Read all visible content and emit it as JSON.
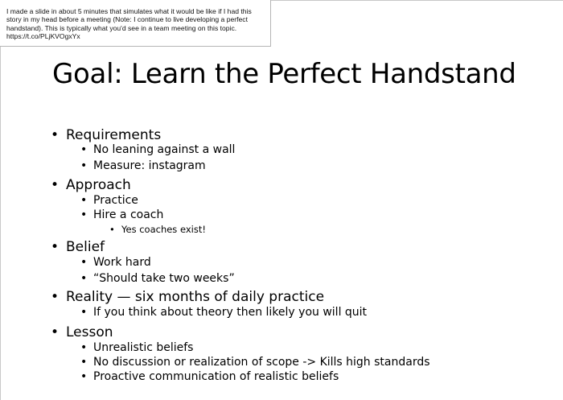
{
  "tweet": {
    "lines": [
      "I made a slide in about 5 minutes that simulates what it would be like if I had this",
      "story in my head before a meeting (Note: I continue to live developing a perfect",
      "handstand). This is typically what you'd see in a team meeting on this topic.",
      "https://t.co/PLjKVOgxYx"
    ]
  },
  "slide": {
    "title": "Goal: Learn the Perfect Handstand",
    "bullet_glyph": "•",
    "sections": [
      {
        "label": "Requirements",
        "items": [
          {
            "label": "No leaning against a wall"
          },
          {
            "label": "Measure: instagram"
          }
        ]
      },
      {
        "label": "Approach",
        "items": [
          {
            "label": "Practice"
          },
          {
            "label": "Hire a coach",
            "sub": [
              "Yes coaches exist!"
            ]
          }
        ]
      },
      {
        "label": "Belief",
        "items": [
          {
            "label": "Work hard"
          },
          {
            "label": "“Should take two weeks”"
          }
        ]
      },
      {
        "label": "Reality — six months of daily practice",
        "items": [
          {
            "label": "If you think about theory then likely you will quit"
          }
        ]
      },
      {
        "label": "Lesson",
        "items": [
          {
            "label": "Unrealistic beliefs"
          },
          {
            "label": "No discussion or realization of scope -> Kills high standards"
          },
          {
            "label": "Proactive communication of realistic beliefs"
          }
        ]
      }
    ]
  }
}
